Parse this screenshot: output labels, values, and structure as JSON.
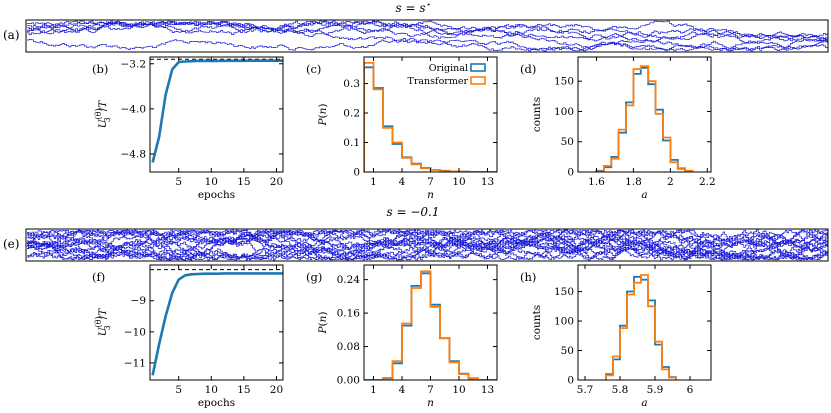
{
  "section_a": {
    "title": "s = s*",
    "title_main": "s = s",
    "title_sup": "⋆",
    "label": "(a)"
  },
  "section_e": {
    "title": "s = −0.1",
    "label": "(e)"
  },
  "colors": {
    "trajectory": "#1a1ad8",
    "original": "#1f77b4",
    "transformer": "#ff7f0e",
    "reference": "#000000"
  },
  "legend": {
    "original": "Original",
    "transformer": "Transformer"
  },
  "chart_data": [
    {
      "id": "b",
      "label": "(b)",
      "type": "line",
      "xlabel": "epochs",
      "ylabel": "U_3^(θ)/T",
      "xlim": [
        0.6,
        21
      ],
      "ylim": [
        -5.12,
        -3.08
      ],
      "xticks": [
        5,
        10,
        15,
        20
      ],
      "yticks": [
        -3.2,
        -4.0,
        -4.8
      ],
      "ytick_labels": [
        "−3.2",
        "−4.0",
        "−4.8"
      ],
      "series": [
        {
          "name": "training",
          "x": [
            1,
            2,
            3,
            4,
            5,
            6,
            7,
            8,
            9,
            10,
            11,
            12,
            13,
            14,
            15,
            16,
            17,
            18,
            19,
            20,
            21
          ],
          "values": [
            -4.95,
            -4.5,
            -3.75,
            -3.3,
            -3.17,
            -3.16,
            -3.155,
            -3.15,
            -3.15,
            -3.15,
            -3.15,
            -3.148,
            -3.148,
            -3.147,
            -3.147,
            -3.146,
            -3.146,
            -3.146,
            -3.145,
            -3.145,
            -3.145
          ]
        }
      ],
      "reference": -3.12
    },
    {
      "id": "c",
      "label": "(c)",
      "type": "histogram",
      "xlabel": "n",
      "ylabel": "P(n)",
      "xlim": [
        0,
        14
      ],
      "ylim": [
        0,
        0.39
      ],
      "xticks": [
        1,
        4,
        7,
        10,
        13
      ],
      "yticks": [
        0.0,
        0.1,
        0.2,
        0.3
      ],
      "bin_edges": [
        0,
        1,
        2,
        3,
        4,
        5,
        6,
        7,
        8,
        9,
        10,
        11,
        12,
        13,
        14
      ],
      "series": [
        {
          "name": "Original",
          "values": [
            0.355,
            0.285,
            0.155,
            0.095,
            0.05,
            0.028,
            0.014,
            0.007,
            0.004,
            0.002,
            0.001,
            0,
            0,
            0
          ]
        },
        {
          "name": "Transformer",
          "values": [
            0.37,
            0.28,
            0.15,
            0.1,
            0.048,
            0.026,
            0.013,
            0.007,
            0.003,
            0.002,
            0.001,
            0,
            0,
            0
          ]
        }
      ]
    },
    {
      "id": "d",
      "label": "(d)",
      "type": "histogram",
      "xlabel": "a",
      "ylabel": "counts",
      "xlim": [
        1.5,
        2.22
      ],
      "ylim": [
        0,
        190
      ],
      "xticks": [
        1.6,
        1.8,
        2.0,
        2.2
      ],
      "yticks": [
        0,
        50,
        100,
        150
      ],
      "bin_edges": [
        1.6,
        1.64,
        1.68,
        1.72,
        1.76,
        1.8,
        1.84,
        1.88,
        1.92,
        1.96,
        2.0,
        2.04,
        2.08,
        2.12
      ],
      "series": [
        {
          "name": "Original",
          "values": [
            2,
            8,
            25,
            65,
            115,
            162,
            172,
            145,
            103,
            52,
            20,
            6,
            1
          ]
        },
        {
          "name": "Transformer",
          "values": [
            1,
            10,
            22,
            70,
            110,
            170,
            175,
            150,
            96,
            57,
            16,
            5,
            2
          ]
        }
      ]
    },
    {
      "id": "f",
      "label": "(f)",
      "type": "line",
      "xlabel": "epochs",
      "ylabel": "U_3^(θ)/T",
      "xlim": [
        0.6,
        21
      ],
      "ylim": [
        -11.55,
        -7.85
      ],
      "xticks": [
        5,
        10,
        15,
        20
      ],
      "yticks": [
        -9,
        -10,
        -11
      ],
      "ytick_labels": [
        "−9",
        "−10",
        "−11"
      ],
      "series": [
        {
          "name": "training",
          "x": [
            1,
            2,
            3,
            4,
            5,
            6,
            7,
            8,
            9,
            10,
            11,
            12,
            13,
            14,
            15,
            16,
            17,
            18,
            19,
            20,
            21
          ],
          "values": [
            -11.4,
            -10.4,
            -9.5,
            -8.75,
            -8.32,
            -8.18,
            -8.15,
            -8.14,
            -8.13,
            -8.13,
            -8.13,
            -8.12,
            -8.12,
            -8.12,
            -8.12,
            -8.12,
            -8.12,
            -8.12,
            -8.12,
            -8.12,
            -8.12
          ]
        }
      ],
      "reference": -8.0
    },
    {
      "id": "g",
      "label": "(g)",
      "type": "histogram",
      "xlabel": "n",
      "ylabel": "P(n)",
      "xlim": [
        0,
        14
      ],
      "ylim": [
        0,
        0.275
      ],
      "xticks": [
        1,
        4,
        7,
        10,
        13
      ],
      "yticks": [
        0.0,
        0.08,
        0.16,
        0.24
      ],
      "ytick_labels": [
        "0.00",
        "0.08",
        "0.16",
        "0.24"
      ],
      "bin_edges": [
        0,
        1,
        2,
        3,
        4,
        5,
        6,
        7,
        8,
        9,
        10,
        11,
        12,
        13,
        14
      ],
      "series": [
        {
          "name": "Original",
          "values": [
            0,
            0,
            0.004,
            0.04,
            0.13,
            0.225,
            0.255,
            0.18,
            0.1,
            0.045,
            0.015,
            0.004,
            0,
            0
          ]
        },
        {
          "name": "Transformer",
          "values": [
            0,
            0,
            0.005,
            0.045,
            0.135,
            0.22,
            0.26,
            0.175,
            0.1,
            0.042,
            0.014,
            0.003,
            0,
            0
          ]
        }
      ]
    },
    {
      "id": "h",
      "label": "(h)",
      "type": "histogram",
      "xlabel": "a",
      "ylabel": "counts",
      "xlim": [
        5.68,
        6.06
      ],
      "ylim": [
        0,
        195
      ],
      "xticks": [
        5.7,
        5.8,
        5.9,
        6.0
      ],
      "yticks": [
        0,
        50,
        100,
        150
      ],
      "bin_edges": [
        5.76,
        5.78,
        5.8,
        5.82,
        5.84,
        5.86,
        5.88,
        5.9,
        5.92,
        5.94,
        5.96
      ],
      "series": [
        {
          "name": "Original",
          "values": [
            10,
            35,
            92,
            150,
            175,
            170,
            135,
            60,
            22,
            5
          ]
        },
        {
          "name": "Transformer",
          "values": [
            8,
            40,
            88,
            145,
            165,
            178,
            125,
            65,
            18,
            4
          ]
        }
      ]
    }
  ]
}
